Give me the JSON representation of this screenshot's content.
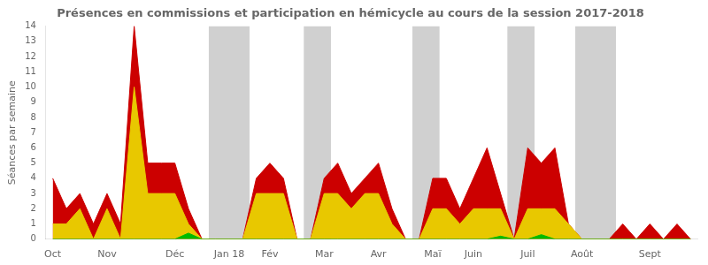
{
  "chart_data": {
    "type": "area",
    "title": "Présences en commissions et participation en hémicycle au cours de la session 2017-2018",
    "ylabel": "Séances par semaine",
    "categories": [
      "Oct",
      null,
      null,
      null,
      "Nov",
      null,
      null,
      null,
      null,
      "Déc",
      null,
      null,
      null,
      "Jan 18",
      null,
      null,
      "Fév",
      null,
      null,
      null,
      "Mar",
      null,
      null,
      null,
      "Avr",
      null,
      null,
      null,
      "Maï",
      null,
      null,
      "Juin",
      null,
      null,
      null,
      "Juil",
      null,
      null,
      null,
      "Août",
      null,
      null,
      null,
      null,
      "Sept",
      null,
      null,
      null
    ],
    "series": [
      {
        "color": "#cc0000",
        "values": [
          4,
          2,
          3,
          1,
          3,
          1,
          14,
          5,
          5,
          5,
          2,
          0,
          0,
          0,
          0,
          4,
          5,
          4,
          0,
          0,
          4,
          5,
          3,
          4,
          5,
          2,
          0,
          0,
          4,
          4,
          2,
          4,
          6,
          3,
          0,
          6,
          5,
          6,
          1,
          0,
          0,
          0,
          1,
          0,
          1,
          0,
          1,
          0
        ]
      },
      {
        "color": "#e8c800",
        "values": [
          1,
          1,
          2,
          0,
          2,
          0,
          10,
          3,
          3,
          3,
          1,
          0,
          0,
          0,
          0,
          3,
          3,
          3,
          0,
          0,
          3,
          3,
          2,
          3,
          3,
          1,
          0,
          0,
          2,
          2,
          1,
          2,
          2,
          2,
          0,
          2,
          2,
          2,
          1,
          0,
          0,
          0,
          0,
          0,
          0,
          0,
          0,
          0
        ]
      },
      {
        "color": "#00bb00",
        "values": [
          0,
          0,
          0,
          0,
          0,
          0,
          0,
          0,
          0,
          0,
          0.4,
          0,
          0,
          0,
          0,
          0,
          0,
          0,
          0,
          0,
          0,
          0,
          0,
          0,
          0,
          0,
          0,
          0,
          0,
          0,
          0,
          0,
          0,
          0.2,
          0,
          0,
          0.3,
          0,
          0,
          0,
          0,
          0,
          0,
          0,
          0,
          0,
          0,
          0
        ]
      }
    ],
    "shaded_bands": [
      {
        "x_start": 11.5,
        "x_end": 14.5
      },
      {
        "x_start": 18.5,
        "x_end": 20.5
      },
      {
        "x_start": 26.5,
        "x_end": 28.5
      },
      {
        "x_start": 33.5,
        "x_end": 35.5
      },
      {
        "x_start": 38.5,
        "x_end": 41.5
      }
    ],
    "ylim": [
      0,
      14
    ],
    "yticks": [
      0,
      1,
      2,
      3,
      4,
      5,
      6,
      7,
      8,
      9,
      10,
      11,
      12,
      13,
      14
    ],
    "grid": false
  }
}
